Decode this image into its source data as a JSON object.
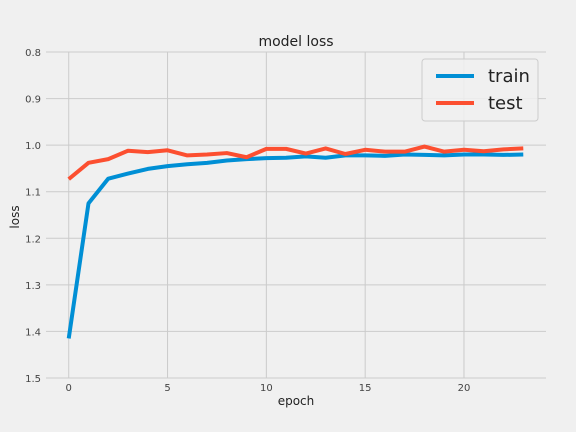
{
  "chart_data": {
    "type": "line",
    "title": "model loss",
    "xlabel": "epoch",
    "ylabel": "loss",
    "xlim": [
      -1.15,
      24.15
    ],
    "ylim": [
      1.5,
      0.8
    ],
    "y_inverted": true,
    "grid": true,
    "xticks": [
      0,
      5,
      10,
      15,
      20
    ],
    "yticks": [
      0.8,
      0.9,
      1.0,
      1.1,
      1.2,
      1.3,
      1.4,
      1.5
    ],
    "ytick_labels": [
      "0.8",
      "0.9",
      "1.0",
      "1.1",
      "1.2",
      "1.3",
      "1.4",
      "1.5"
    ],
    "legend_position": "top-right",
    "x": [
      0,
      1,
      2,
      3,
      4,
      5,
      6,
      7,
      8,
      9,
      10,
      11,
      12,
      13,
      14,
      15,
      16,
      17,
      18,
      19,
      20,
      21,
      22,
      23
    ],
    "series": [
      {
        "name": "train",
        "color": "#008fd5",
        "values": [
          1.415,
          1.125,
          1.072,
          1.061,
          1.051,
          1.045,
          1.041,
          1.038,
          1.033,
          1.03,
          1.028,
          1.027,
          1.024,
          1.027,
          1.022,
          1.022,
          1.023,
          1.02,
          1.021,
          1.022,
          1.02,
          1.02,
          1.021,
          1.02
        ]
      },
      {
        "name": "test",
        "color": "#fc4f30",
        "values": [
          1.073,
          1.038,
          1.03,
          1.012,
          1.015,
          1.011,
          1.022,
          1.02,
          1.017,
          1.026,
          1.008,
          1.008,
          1.018,
          1.007,
          1.019,
          1.01,
          1.014,
          1.014,
          1.003,
          1.014,
          1.01,
          1.013,
          1.009,
          1.007
        ]
      }
    ]
  }
}
